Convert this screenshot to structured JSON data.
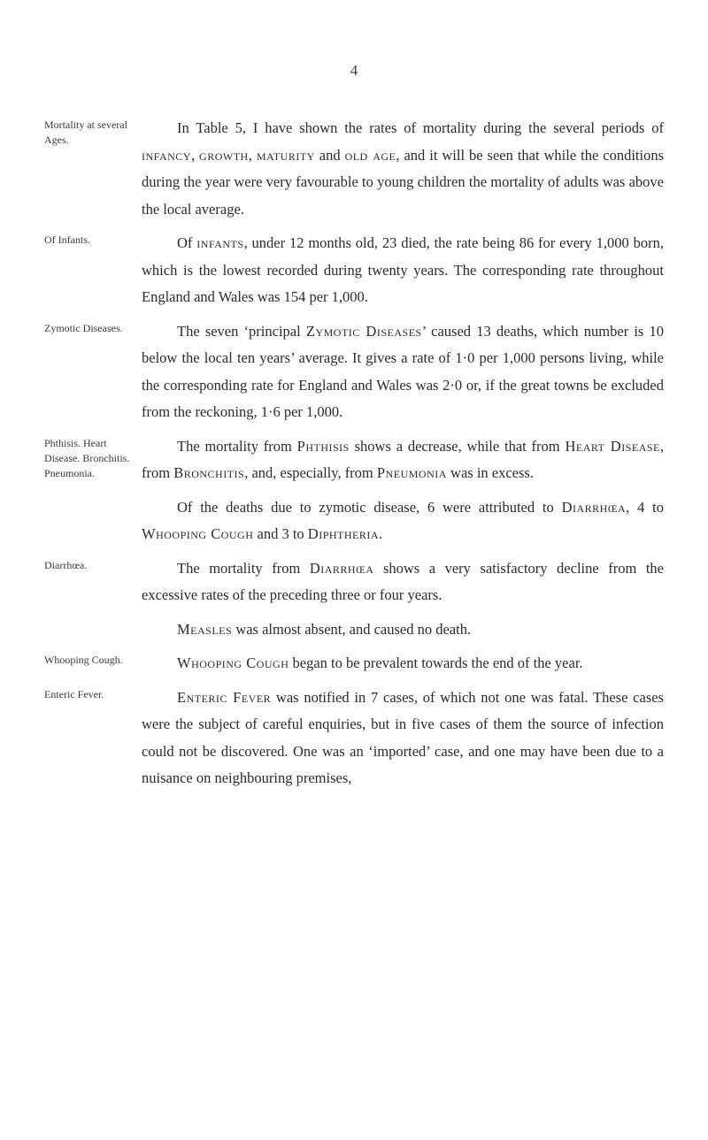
{
  "page_number": "4",
  "sections": [
    {
      "margin": "Mortality at several Ages.",
      "body_html": "In Table 5, I have shown the rates of mortality during the several periods of <span class='smallcaps'>infancy</span>, <span class='smallcaps'>growth</span>, <span class='smallcaps'>maturity</span> and <span class='smallcaps'>old age</span>, and it will be seen that while the conditions during the year were very favourable to young children the mortality of adults was above the local average."
    },
    {
      "margin": "Of Infants.",
      "body_html": "Of <span class='smallcaps'>infants</span>, under 12 months old, 23 died, the rate being 86 for every 1,000 born, which is the lowest recorded during twenty years. The corresponding rate throughout England and Wales was 154 per 1,000."
    },
    {
      "margin": "Zymotic Diseases.",
      "body_html": "The seven &lsquo;principal <span class='smallcaps'>Zymotic Diseases</span>&rsquo; caused 13 deaths, which number is 10 below the local ten years&rsquo; average. It gives a rate of 1&middot;0 per 1,000 persons living, while the corresponding rate for England and Wales was 2&middot;0 or, if the great towns be excluded from the reckoning, 1&middot;6 per 1,000."
    },
    {
      "margin": "Phthisis. Heart Disease. Bronchitis. Pneumonia.",
      "body_html": "The mortality from <span class='smallcaps'>Phthisis</span> shows a decrease, while that from <span class='smallcaps'>Heart Disease</span>, from <span class='smallcaps'>Bronchitis</span>, and, especially, from <span class='smallcaps'>Pneumonia</span> was in excess."
    },
    {
      "margin": "",
      "body_html": "Of the deaths due to zymotic disease, 6 were attributed to <span class='smallcaps'>Diarrh&oelig;a</span>, 4 to <span class='smallcaps'>Whooping Cough</span> and 3 to <span class='smallcaps'>Diphtheria</span>."
    },
    {
      "margin": "Diarrhœa.",
      "body_html": "The mortality from <span class='smallcaps'>Diarrh&oelig;a</span> shows a very satisfactory decline from the excessive rates of the preceding three or four years."
    },
    {
      "margin": "",
      "body_html": "<span class='smallcaps'>Measles</span> was almost absent, and caused no death."
    },
    {
      "margin": "Whooping Cough.",
      "body_html": "<span class='smallcaps'>Whooping Cough</span> began to be prevalent towards the end of the year."
    },
    {
      "margin": "Enteric Fever.",
      "body_html": "<span class='smallcaps'>Enteric Fever</span> was notified in 7 cases, of which not one was fatal. These cases were the subject of careful enquiries, but in five cases of them the source of infection could not be discovered. One was an &lsquo;imported&rsquo; case, and one may have been due to a nuisance on neighbouring premises,"
    }
  ]
}
